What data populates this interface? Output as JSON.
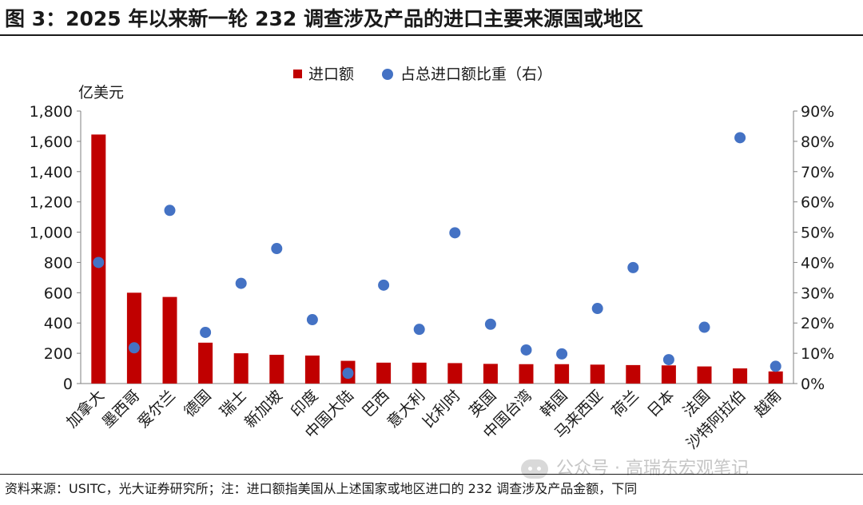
{
  "title": "图 3：2025 年以来新一轮 232 调查涉及产品的进口主要来源国或地区",
  "source_note": "资料来源：USITC，光大证券研究所；注：进口额指美国从上述国家或地区进口的 232 调查涉及产品金额，下同",
  "watermark": "公众号 · 高瑞东宏观笔记",
  "colors": {
    "bar": "#c00000",
    "dot": "#4472c4"
  },
  "chart_data": {
    "type": "bar",
    "y_unit_label": "亿美元",
    "legend": [
      "进口额",
      "占总进口额比重（右）"
    ],
    "legend_position": "top-center",
    "grid": false,
    "categories": [
      "加拿大",
      "墨西哥",
      "爱尔兰",
      "德国",
      "瑞士",
      "新加坡",
      "印度",
      "中国大陆",
      "巴西",
      "意大利",
      "比利时",
      "英国",
      "中国台湾",
      "韩国",
      "马来西亚",
      "荷兰",
      "日本",
      "法国",
      "沙特阿拉伯",
      "越南"
    ],
    "series": [
      {
        "name": "进口额",
        "type": "bar",
        "axis": "left",
        "values": [
          1645,
          600,
          572,
          270,
          200,
          190,
          185,
          150,
          138,
          138,
          135,
          130,
          128,
          128,
          125,
          122,
          120,
          113,
          100,
          80
        ]
      },
      {
        "name": "占总进口额比重（右）",
        "type": "scatter",
        "axis": "right",
        "values": [
          40.0,
          11.8,
          57.2,
          16.9,
          33.1,
          44.6,
          21.1,
          3.4,
          32.5,
          17.9,
          49.8,
          19.6,
          11.1,
          9.8,
          24.8,
          38.3,
          7.9,
          18.6,
          81.2,
          5.7
        ]
      }
    ],
    "left_axis": {
      "ylim": [
        0,
        1800
      ],
      "ticks": [
        "0",
        "200",
        "400",
        "600",
        "800",
        "1,000",
        "1,200",
        "1,400",
        "1,600",
        "1,800"
      ]
    },
    "right_axis": {
      "ylim": [
        0,
        90
      ],
      "ticks": [
        "0%",
        "10%",
        "20%",
        "30%",
        "40%",
        "50%",
        "60%",
        "70%",
        "80%",
        "90%"
      ]
    }
  }
}
